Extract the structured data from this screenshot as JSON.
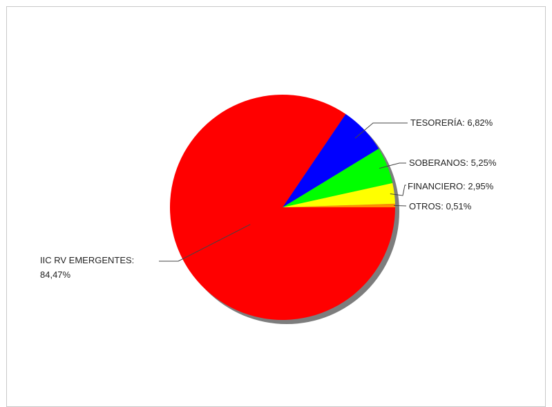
{
  "chart_data": {
    "type": "pie",
    "title": "",
    "slices": [
      {
        "label": "IIC RV EMERGENTES",
        "value_text": "84,47%",
        "value": 84.47,
        "color": "#ff0000"
      },
      {
        "label": "TESORERÍA",
        "value_text": "6,82%",
        "value": 6.82,
        "color": "#0000ff"
      },
      {
        "label": "SOBERANOS",
        "value_text": "5,25%",
        "value": 5.25,
        "color": "#00ff00"
      },
      {
        "label": "FINANCIERO",
        "value_text": "2,95%",
        "value": 2.95,
        "color": "#ffff00"
      },
      {
        "label": "OTROS",
        "value_text": "0,51%",
        "value": 0.51,
        "color": "#ff8c00"
      }
    ],
    "labels_display": [
      "TESORERÍA: 6,82%",
      "SOBERANOS: 5,25%",
      "FINANCIERO: 2,95%",
      "OTROS: 0,51%"
    ],
    "big_label_line1": "IIC RV EMERGENTES:",
    "big_label_line2": "84,47%",
    "legend": "none",
    "shadow": true
  }
}
